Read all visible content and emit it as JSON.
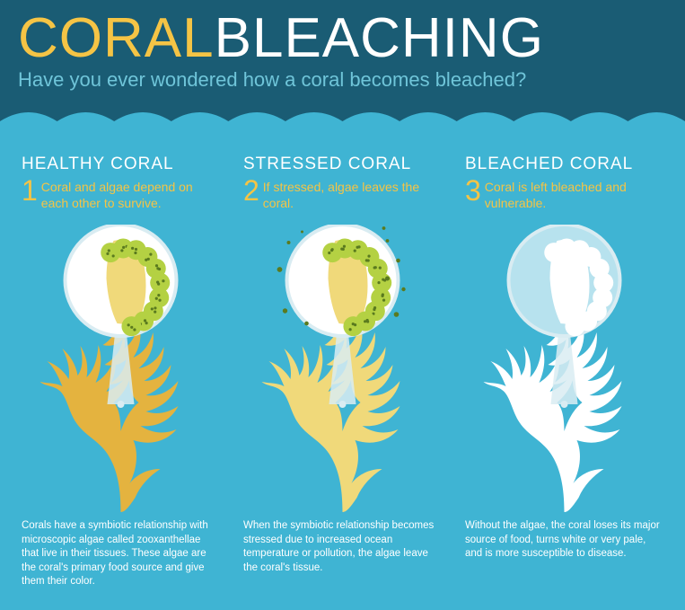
{
  "title_word1": "CORAL",
  "title_word2": "BLEACHING",
  "subtitle": "Have you ever wondered how a coral becomes bleached?",
  "colors": {
    "header_bg": "#1a5c74",
    "body_bg": "#3fb4d3",
    "accent_yellow": "#f5c445",
    "white": "#ffffff",
    "subtitle": "#6fc5d9",
    "algae_green": "#b4d143",
    "coral_body": "#f0d97a",
    "dot_dark": "#5a7a1f",
    "wedge": "#d9ecf2",
    "coral_healthy": "#e4b33f",
    "coral_stressed": "#f0d97a",
    "coral_bleached": "#ffffff"
  },
  "columns": [
    {
      "title": "HEALTHY CORAL",
      "number": "1",
      "tagline": "Coral and algae depend on each other to survive.",
      "description": "Corals have a symbiotic relationship with microscopic algae called zooxanthellae that live in their tissues. These algae are the coral's primary food source and give them their color.",
      "circle_bg": "#ffffff",
      "algae_color": "#b4d143",
      "coral_body_color": "#f0d97a",
      "coral_branch_color": "#e4b33f",
      "scatter_dots": false
    },
    {
      "title": "STRESSED CORAL",
      "number": "2",
      "tagline": "If stressed, algae leaves the coral.",
      "description": "When the symbiotic relationship becomes stressed due to increased ocean temperature or pollution, the algae leave the coral's tissue.",
      "circle_bg": "#ffffff",
      "algae_color": "#b4d143",
      "coral_body_color": "#f0d97a",
      "coral_branch_color": "#f0d97a",
      "scatter_dots": true
    },
    {
      "title": "BLEACHED CORAL",
      "number": "3",
      "tagline": "Coral is left bleached and vulnerable.",
      "description": "Without the algae, the coral loses its major source of food, turns white or very pale, and is more susceptible to disease.",
      "circle_bg": "#b7e2ee",
      "algae_color": "#ffffff",
      "coral_body_color": "#ffffff",
      "coral_branch_color": "#ffffff",
      "scatter_dots": false
    }
  ]
}
